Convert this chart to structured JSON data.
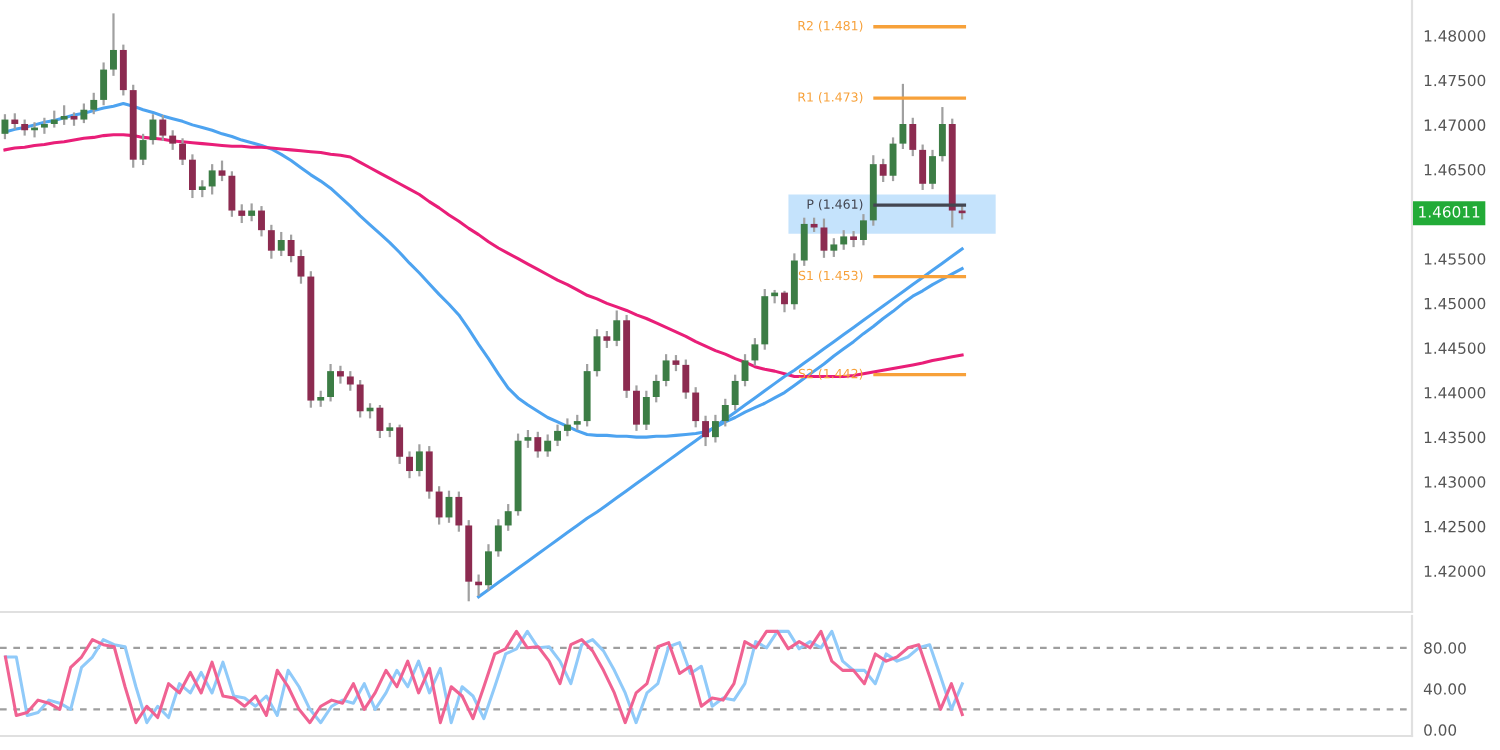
{
  "chart_data": [
    {
      "type": "candlestick",
      "tick_labels": "y",
      "grid": false,
      "annotations": [
        "1.46011"
      ],
      "categories": [
        null,
        null,
        null,
        null,
        null,
        null,
        null,
        null,
        null,
        null,
        null,
        null,
        null,
        null,
        null,
        null,
        null,
        null,
        null,
        null,
        null,
        null,
        null,
        null,
        null,
        null,
        null,
        null,
        null,
        null,
        null,
        null,
        null,
        null,
        null,
        null,
        null,
        null,
        null,
        null,
        null,
        null,
        null,
        null,
        null,
        null,
        null,
        null,
        null,
        null,
        null,
        null,
        null,
        null,
        null,
        null,
        null,
        null,
        null,
        null,
        null,
        null,
        null,
        null,
        null,
        null,
        null,
        null,
        null,
        null,
        null,
        null,
        null,
        null,
        null,
        null,
        null,
        null,
        null,
        null,
        null,
        null,
        null,
        null,
        null,
        null,
        null,
        null,
        null,
        null,
        null,
        null,
        null,
        null,
        null,
        null,
        null,
        null
      ],
      "ohlc": [
        [
          1.469,
          1.4712,
          1.4684,
          1.4706
        ],
        [
          1.4706,
          1.4713,
          1.4695,
          1.4701
        ],
        [
          1.4701,
          1.4706,
          1.4688,
          1.4694
        ],
        [
          1.4694,
          1.4703,
          1.4686,
          1.4697
        ],
        [
          1.4697,
          1.4708,
          1.469,
          1.4701
        ],
        [
          1.4701,
          1.4716,
          1.4697,
          1.4706
        ],
        [
          1.4706,
          1.4722,
          1.47,
          1.471
        ],
        [
          1.471,
          1.4714,
          1.4699,
          1.4706
        ],
        [
          1.4706,
          1.4724,
          1.4702,
          1.4717
        ],
        [
          1.4717,
          1.4736,
          1.4712,
          1.4728
        ],
        [
          1.4728,
          1.477,
          1.4722,
          1.4762
        ],
        [
          1.4762,
          1.4825,
          1.4755,
          1.4784
        ],
        [
          1.4784,
          1.479,
          1.4733,
          1.4739
        ],
        [
          1.4739,
          1.4745,
          1.4652,
          1.4661
        ],
        [
          1.4661,
          1.469,
          1.4655,
          1.4683
        ],
        [
          1.4683,
          1.4712,
          1.4678,
          1.4706
        ],
        [
          1.4706,
          1.4711,
          1.4682,
          1.4688
        ],
        [
          1.4688,
          1.4694,
          1.4672,
          1.4679
        ],
        [
          1.4679,
          1.4685,
          1.4655,
          1.4661
        ],
        [
          1.4661,
          1.4667,
          1.4618,
          1.4627
        ],
        [
          1.4627,
          1.4638,
          1.4619,
          1.4631
        ],
        [
          1.4631,
          1.4656,
          1.4622,
          1.4649
        ],
        [
          1.4649,
          1.466,
          1.4637,
          1.4643
        ],
        [
          1.4643,
          1.4648,
          1.4597,
          1.4604
        ],
        [
          1.4604,
          1.4611,
          1.459,
          1.4598
        ],
        [
          1.4598,
          1.4612,
          1.4592,
          1.4604
        ],
        [
          1.4604,
          1.4609,
          1.4575,
          1.4582
        ],
        [
          1.4582,
          1.4588,
          1.455,
          1.4559
        ],
        [
          1.4559,
          1.458,
          1.4553,
          1.4571
        ],
        [
          1.4571,
          1.4577,
          1.4546,
          1.4553
        ],
        [
          1.4553,
          1.456,
          1.4522,
          1.453
        ],
        [
          1.453,
          1.4536,
          1.4383,
          1.4391
        ],
        [
          1.4391,
          1.4402,
          1.4384,
          1.4395
        ],
        [
          1.4395,
          1.4432,
          1.439,
          1.4424
        ],
        [
          1.4424,
          1.443,
          1.441,
          1.4418
        ],
        [
          1.4418,
          1.4424,
          1.4402,
          1.4409
        ],
        [
          1.4409,
          1.4414,
          1.4372,
          1.4379
        ],
        [
          1.4379,
          1.4388,
          1.4371,
          1.4383
        ],
        [
          1.4383,
          1.4386,
          1.4349,
          1.4357
        ],
        [
          1.4357,
          1.4366,
          1.435,
          1.4361
        ],
        [
          1.4361,
          1.4364,
          1.432,
          1.4328
        ],
        [
          1.4328,
          1.4334,
          1.4304,
          1.4312
        ],
        [
          1.4312,
          1.4342,
          1.4306,
          1.4334
        ],
        [
          1.4334,
          1.434,
          1.4281,
          1.4289
        ],
        [
          1.4289,
          1.4295,
          1.4252,
          1.426
        ],
        [
          1.426,
          1.429,
          1.4254,
          1.4283
        ],
        [
          1.4283,
          1.4289,
          1.4244,
          1.4251
        ],
        [
          1.4251,
          1.4257,
          1.4166,
          1.4188
        ],
        [
          1.4188,
          1.4196,
          1.4172,
          1.4184
        ],
        [
          1.4184,
          1.423,
          1.4178,
          1.4222
        ],
        [
          1.4222,
          1.4258,
          1.4216,
          1.4251
        ],
        [
          1.4251,
          1.4275,
          1.4245,
          1.4267
        ],
        [
          1.4267,
          1.4354,
          1.4262,
          1.4346
        ],
        [
          1.4346,
          1.4358,
          1.4338,
          1.435
        ],
        [
          1.435,
          1.4356,
          1.4327,
          1.4334
        ],
        [
          1.4334,
          1.4353,
          1.4328,
          1.4346
        ],
        [
          1.4346,
          1.4364,
          1.434,
          1.4357
        ],
        [
          1.4357,
          1.4371,
          1.4351,
          1.4364
        ],
        [
          1.4364,
          1.4375,
          1.4358,
          1.4368
        ],
        [
          1.4368,
          1.4432,
          1.4362,
          1.4424
        ],
        [
          1.4424,
          1.4471,
          1.4418,
          1.4463
        ],
        [
          1.4463,
          1.4469,
          1.445,
          1.4458
        ],
        [
          1.4458,
          1.4492,
          1.4452,
          1.4481
        ],
        [
          1.4481,
          1.4487,
          1.4394,
          1.4402
        ],
        [
          1.4402,
          1.4408,
          1.4357,
          1.4364
        ],
        [
          1.4364,
          1.4402,
          1.4358,
          1.4395
        ],
        [
          1.4395,
          1.442,
          1.4389,
          1.4413
        ],
        [
          1.4413,
          1.4443,
          1.4407,
          1.4436
        ],
        [
          1.4436,
          1.4442,
          1.4424,
          1.4431
        ],
        [
          1.4431,
          1.4437,
          1.4393,
          1.44
        ],
        [
          1.44,
          1.4406,
          1.4361,
          1.4368
        ],
        [
          1.4368,
          1.4374,
          1.434,
          1.435
        ],
        [
          1.435,
          1.4375,
          1.4344,
          1.4368
        ],
        [
          1.4368,
          1.4393,
          1.4362,
          1.4386
        ],
        [
          1.4386,
          1.442,
          1.438,
          1.4413
        ],
        [
          1.4413,
          1.4443,
          1.4407,
          1.4436
        ],
        [
          1.4436,
          1.4461,
          1.443,
          1.4454
        ],
        [
          1.4454,
          1.4516,
          1.4448,
          1.4508
        ],
        [
          1.4508,
          1.4515,
          1.45,
          1.4512
        ],
        [
          1.4512,
          1.4514,
          1.449,
          1.4499
        ],
        [
          1.4499,
          1.4556,
          1.4493,
          1.4548
        ],
        [
          1.4548,
          1.4596,
          1.4542,
          1.4589
        ],
        [
          1.4589,
          1.4596,
          1.458,
          1.4585
        ],
        [
          1.4585,
          1.4595,
          1.4551,
          1.4559
        ],
        [
          1.4559,
          1.4573,
          1.4552,
          1.4566
        ],
        [
          1.4566,
          1.4582,
          1.456,
          1.4575
        ],
        [
          1.4575,
          1.4581,
          1.4563,
          1.4571
        ],
        [
          1.4571,
          1.46,
          1.4565,
          1.4593
        ],
        [
          1.4593,
          1.4666,
          1.4587,
          1.4656
        ],
        [
          1.4656,
          1.4662,
          1.4636,
          1.4643
        ],
        [
          1.4643,
          1.4686,
          1.4637,
          1.4679
        ],
        [
          1.4679,
          1.4746,
          1.4673,
          1.4701
        ],
        [
          1.4701,
          1.4708,
          1.4665,
          1.4672
        ],
        [
          1.4672,
          1.4678,
          1.4627,
          1.4634
        ],
        [
          1.4634,
          1.4672,
          1.4628,
          1.4665
        ],
        [
          1.4665,
          1.472,
          1.4659,
          1.4701
        ],
        [
          1.4701,
          1.4707,
          1.4585,
          1.4604
        ],
        [
          1.4604,
          1.461,
          1.4594,
          1.4601
        ]
      ],
      "series": [
        {
          "type": "line",
          "color": "#4da3f0",
          "values": [
            1.4692,
            1.4695,
            1.4697,
            1.47,
            1.4703,
            1.4705,
            1.4708,
            1.4711,
            1.4713,
            1.4716,
            1.4719,
            1.4721,
            1.4724,
            1.4721,
            1.4717,
            1.4714,
            1.471,
            1.4707,
            1.4704,
            1.47,
            1.4697,
            1.4694,
            1.469,
            1.4687,
            1.4683,
            1.468,
            1.4677,
            1.4673,
            1.4667,
            1.466,
            1.4652,
            1.4644,
            1.4637,
            1.4629,
            1.4619,
            1.4609,
            1.4598,
            1.4588,
            1.4578,
            1.4568,
            1.4557,
            1.4545,
            1.4534,
            1.4522,
            1.451,
            1.4499,
            1.4487,
            1.4471,
            1.4454,
            1.4438,
            1.4421,
            1.4405,
            1.4394,
            1.4386,
            1.4379,
            1.4372,
            1.4367,
            1.4362,
            1.4357,
            1.4353,
            1.4352,
            1.4352,
            1.4351,
            1.4351,
            1.435,
            1.435,
            1.4351,
            1.4351,
            1.4352,
            1.4353,
            1.4354,
            1.4356,
            1.4361,
            1.4367,
            1.4372,
            1.4378,
            1.4383,
            1.4388,
            1.4394,
            1.44,
            1.4408,
            1.4416,
            1.4424,
            1.4432,
            1.4441,
            1.4449,
            1.4457,
            1.4466,
            1.4474,
            1.4483,
            1.4491,
            1.45,
            1.4508,
            1.4514,
            1.4521,
            1.4527,
            1.4533,
            1.4539
          ]
        },
        {
          "type": "line",
          "color": "#e91e78",
          "values": [
            1.4672,
            1.4674,
            1.4675,
            1.4677,
            1.4678,
            1.468,
            1.4681,
            1.4683,
            1.4685,
            1.4686,
            1.4688,
            1.4689,
            1.4689,
            1.4688,
            1.4686,
            1.4685,
            1.4684,
            1.4682,
            1.4681,
            1.468,
            1.4679,
            1.4678,
            1.4677,
            1.4676,
            1.4676,
            1.4675,
            1.4675,
            1.4674,
            1.4673,
            1.4672,
            1.4671,
            1.467,
            1.4669,
            1.4667,
            1.4666,
            1.4664,
            1.4658,
            1.4652,
            1.4646,
            1.464,
            1.4634,
            1.4628,
            1.4622,
            1.4614,
            1.4607,
            1.4599,
            1.4592,
            1.4584,
            1.4577,
            1.4569,
            1.4562,
            1.4556,
            1.455,
            1.4544,
            1.4538,
            1.4532,
            1.4526,
            1.4521,
            1.4515,
            1.4509,
            1.4505,
            1.45,
            1.4496,
            1.4492,
            1.4487,
            1.4483,
            1.4478,
            1.4473,
            1.4468,
            1.4463,
            1.4457,
            1.4452,
            1.4447,
            1.4443,
            1.4438,
            1.4434,
            1.4429,
            1.4426,
            1.4424,
            1.4421,
            1.4418,
            1.4418,
            1.4418,
            1.4418,
            1.4418,
            1.4418,
            1.4419,
            1.4421,
            1.4423,
            1.4425,
            1.4427,
            1.4429,
            1.4431,
            1.4433,
            1.4436,
            1.4438,
            1.444,
            1.4442
          ]
        },
        {
          "type": "line",
          "color": "#4da3f0",
          "values": [
            null,
            null,
            null,
            null,
            null,
            null,
            null,
            null,
            null,
            null,
            null,
            null,
            null,
            null,
            null,
            null,
            null,
            null,
            null,
            null,
            null,
            null,
            null,
            null,
            null,
            null,
            null,
            null,
            null,
            null,
            null,
            null,
            null,
            null,
            null,
            null,
            null,
            null,
            null,
            null,
            null,
            null,
            null,
            null,
            null,
            null,
            null,
            null,
            1.4171,
            1.4179,
            1.4187,
            1.4195,
            1.4203,
            1.4211,
            1.4219,
            1.4227,
            1.4235,
            1.4243,
            1.4251,
            1.4259,
            1.4266,
            1.4274,
            1.4282,
            1.429,
            1.4298,
            1.4306,
            1.4314,
            1.4322,
            1.433,
            1.4338,
            1.4346,
            1.4354,
            1.4362,
            1.437,
            1.4378,
            1.4386,
            1.4394,
            1.4402,
            1.441,
            1.4418,
            1.4425,
            1.4433,
            1.4441,
            1.4449,
            1.4457,
            1.4465,
            1.4473,
            1.4481,
            1.4489,
            1.4497,
            1.4505,
            1.4513,
            1.4521,
            1.4529,
            1.4537,
            1.4545,
            1.4553,
            1.4561
          ]
        }
      ],
      "ref_lines": [
        {
          "axis": "y",
          "value": 1.481,
          "label": "R2 (1.481)",
          "color": "#f7a13a"
        },
        {
          "axis": "y",
          "value": 1.473,
          "label": "R1 (1.473)",
          "color": "#f7a13a"
        },
        {
          "axis": "y",
          "value": 1.461,
          "label": "P (1.461)",
          "color": "#434651"
        },
        {
          "axis": "y",
          "value": 1.453,
          "label": "S1 (1.453)",
          "color": "#f7a13a"
        },
        {
          "axis": "y",
          "value": 1.442,
          "label": "S2 (1.442)",
          "color": "#f7a13a"
        }
      ],
      "bands": [
        {
          "axis": "y",
          "from": 1.4578,
          "to": 1.4622,
          "color": "#bbdefb"
        }
      ],
      "ylim": [
        1.4154,
        1.484
      ],
      "yticks": [
        {
          "value": 1.42,
          "label": "1.42000"
        },
        {
          "value": 1.425,
          "label": "1.42500"
        },
        {
          "value": 1.43,
          "label": "1.43000"
        },
        {
          "value": 1.435,
          "label": "1.43500"
        },
        {
          "value": 1.44,
          "label": "1.44000"
        },
        {
          "value": 1.445,
          "label": "1.44500"
        },
        {
          "value": 1.45,
          "label": "1.45000"
        },
        {
          "value": 1.455,
          "label": "1.45500"
        },
        {
          "value": 1.465,
          "label": "1.46500"
        },
        {
          "value": 1.47,
          "label": "1.47000"
        },
        {
          "value": 1.475,
          "label": "1.47500"
        },
        {
          "value": 1.48,
          "label": "1.48000"
        }
      ]
    },
    {
      "type": "line",
      "tick_labels": "y",
      "grid": false,
      "ylim": [
        -6,
        111
      ],
      "categories": [
        null,
        null,
        null,
        null,
        null,
        null,
        null,
        null,
        null,
        null,
        null,
        null,
        null,
        null,
        null,
        null,
        null,
        null,
        null,
        null,
        null,
        null,
        null,
        null,
        null,
        null,
        null,
        null,
        null,
        null,
        null,
        null,
        null,
        null,
        null,
        null,
        null,
        null,
        null,
        null,
        null,
        null,
        null,
        null,
        null,
        null,
        null,
        null,
        null,
        null,
        null,
        null,
        null,
        null,
        null,
        null,
        null,
        null,
        null,
        null,
        null,
        null,
        null,
        null,
        null,
        null,
        null,
        null,
        null,
        null,
        null,
        null,
        null,
        null,
        null,
        null,
        null,
        null,
        null,
        null,
        null,
        null,
        null,
        null,
        null,
        null,
        null,
        null,
        null
      ],
      "yticks": [
        {
          "value": 80,
          "label": "80.00"
        },
        {
          "value": 40,
          "label": "40.00"
        },
        {
          "value": 0,
          "label": "0.00"
        }
      ],
      "ref_lines": [
        {
          "axis": "y",
          "value": 80,
          "color": "#9e9e9e",
          "line_style": "dashed"
        },
        {
          "axis": "y",
          "value": 20,
          "color": "#9e9e9e",
          "line_style": "dashed"
        }
      ],
      "series": [
        {
          "type": "line",
          "color": "#90caf9",
          "values": [
            71,
            71,
            14,
            17,
            29,
            26,
            20,
            61,
            71,
            88,
            83,
            81,
            42,
            7,
            23,
            12,
            45,
            36,
            56,
            36,
            66,
            33,
            31,
            23,
            33,
            14,
            58,
            42,
            20,
            7,
            23,
            29,
            26,
            45,
            20,
            36,
            58,
            42,
            67,
            36,
            60,
            7,
            42,
            33,
            11,
            42,
            74,
            79,
            96,
            80,
            81,
            67,
            45,
            83,
            88,
            77,
            58,
            36,
            7,
            36,
            45,
            81,
            85,
            55,
            62,
            23,
            31,
            29,
            45,
            86,
            80,
            96,
            96,
            79,
            86,
            80,
            96,
            67,
            58,
            58,
            45,
            74,
            67,
            71,
            80,
            83,
            52,
            20,
            45
          ]
        },
        {
          "type": "line",
          "color": "#f06292",
          "values": [
            71,
            14,
            17,
            29,
            26,
            20,
            61,
            71,
            88,
            83,
            81,
            42,
            7,
            23,
            12,
            45,
            36,
            56,
            36,
            66,
            33,
            31,
            23,
            33,
            14,
            58,
            42,
            20,
            7,
            23,
            29,
            26,
            45,
            20,
            36,
            58,
            42,
            67,
            36,
            60,
            7,
            42,
            33,
            11,
            42,
            74,
            79,
            96,
            80,
            81,
            67,
            45,
            83,
            88,
            77,
            58,
            36,
            7,
            36,
            45,
            81,
            85,
            55,
            62,
            23,
            31,
            29,
            45,
            86,
            80,
            96,
            96,
            79,
            86,
            80,
            96,
            67,
            58,
            58,
            45,
            74,
            67,
            71,
            80,
            83,
            52,
            20,
            45,
            15
          ]
        }
      ]
    }
  ]
}
